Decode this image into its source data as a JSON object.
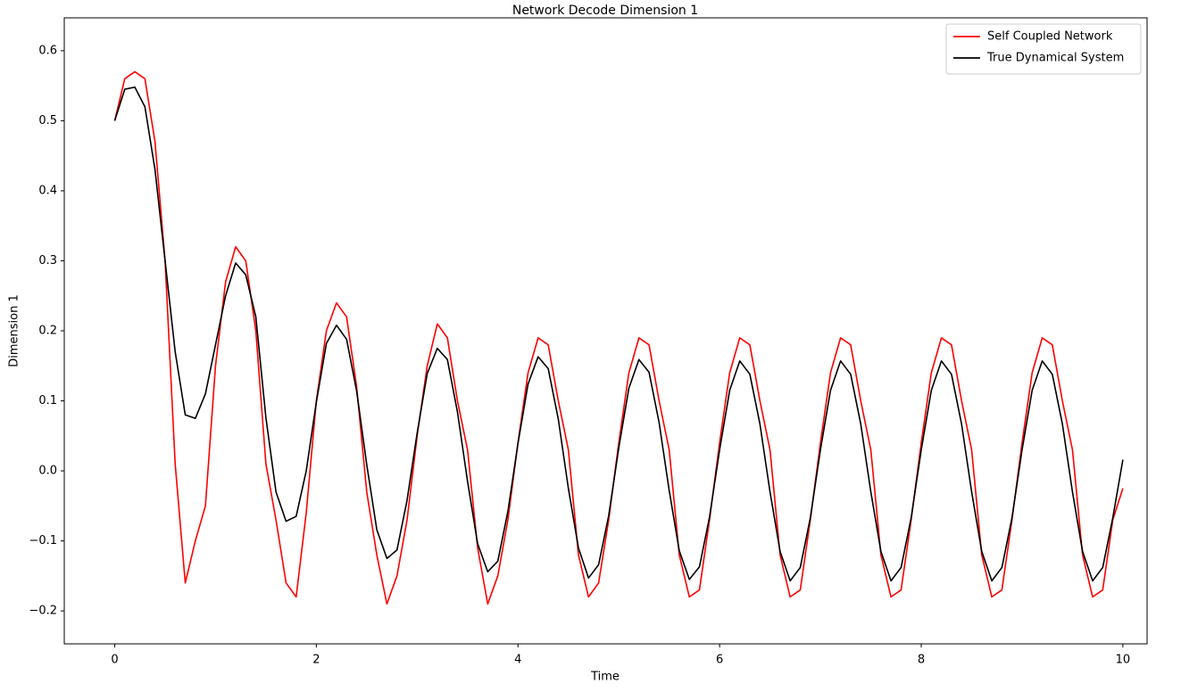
{
  "chart_data": {
    "type": "line",
    "title": "Network Decode Dimension 1",
    "x_label": "Time",
    "y_label": "Dimension 1",
    "x": [
      0,
      0.1,
      0.2,
      0.3,
      0.4,
      0.5,
      0.6,
      0.7,
      0.8,
      0.9,
      1,
      1.1,
      1.2,
      1.3,
      1.4,
      1.5,
      1.6,
      1.7,
      1.8,
      1.9,
      2,
      2.1,
      2.2,
      2.3,
      2.4,
      2.5,
      2.6,
      2.7,
      2.8,
      2.9,
      3,
      3.1,
      3.2,
      3.3,
      3.4,
      3.5,
      3.6,
      3.7,
      3.8,
      3.9,
      4,
      4.1,
      4.2,
      4.3,
      4.4,
      4.5,
      4.6,
      4.7,
      4.8,
      4.9,
      5,
      5.1,
      5.2,
      5.3,
      5.4,
      5.5,
      5.6,
      5.7,
      5.8,
      5.9,
      6,
      6.1,
      6.2,
      6.3,
      6.4,
      6.5,
      6.6,
      6.7,
      6.8,
      6.9,
      7,
      7.1,
      7.2,
      7.3,
      7.4,
      7.5,
      7.6,
      7.7,
      7.8,
      7.9,
      8,
      8.1,
      8.2,
      8.3,
      8.4,
      8.5,
      8.6,
      8.7,
      8.8,
      8.9,
      9,
      9.1,
      9.2,
      9.3,
      9.4,
      9.5,
      9.6,
      9.7,
      9.8,
      9.9,
      10
    ],
    "series": [
      {
        "name": "Self Coupled Network",
        "color": "#ff0000",
        "values": [
          0.5,
          0.56,
          0.57,
          0.56,
          0.47,
          0.3,
          0.01,
          -0.16,
          -0.1,
          -0.05,
          0.15,
          0.27,
          0.32,
          0.3,
          0.2,
          0.01,
          -0.07,
          -0.16,
          -0.18,
          -0.06,
          0.1,
          0.2,
          0.24,
          0.22,
          0.12,
          -0.03,
          -0.12,
          -0.19,
          -0.15,
          -0.07,
          0.05,
          0.15,
          0.21,
          0.19,
          0.1,
          0.03,
          -0.11,
          -0.19,
          -0.15,
          -0.07,
          0.04,
          0.14,
          0.19,
          0.18,
          0.1,
          0.03,
          -0.12,
          -0.18,
          -0.16,
          -0.07,
          0.04,
          0.14,
          0.19,
          0.18,
          0.1,
          0.03,
          -0.12,
          -0.18,
          -0.17,
          -0.07,
          0.04,
          0.14,
          0.19,
          0.18,
          0.1,
          0.03,
          -0.12,
          -0.18,
          -0.17,
          -0.07,
          0.04,
          0.14,
          0.19,
          0.18,
          0.1,
          0.03,
          -0.12,
          -0.18,
          -0.17,
          -0.07,
          0.04,
          0.14,
          0.19,
          0.18,
          0.1,
          0.03,
          -0.12,
          -0.18,
          -0.17,
          -0.07,
          0.04,
          0.14,
          0.19,
          0.18,
          0.1,
          0.03,
          -0.12,
          -0.18,
          -0.17,
          -0.07,
          -0.025
        ]
      },
      {
        "name": "True Dynamical System",
        "color": "#000000",
        "values": [
          0.5,
          0.545,
          0.548,
          0.52,
          0.43,
          0.3,
          0.17,
          0.08,
          0.075,
          0.11,
          0.18,
          0.25,
          0.297,
          0.28,
          0.22,
          0.076,
          -0.03,
          -0.072,
          -0.065,
          0,
          0.098,
          0.182,
          0.208,
          0.188,
          0.114,
          0.009,
          -0.084,
          -0.125,
          -0.113,
          -0.042,
          0.054,
          0.139,
          0.175,
          0.159,
          0.084,
          -0.015,
          -0.104,
          -0.144,
          -0.129,
          -0.058,
          0.039,
          0.124,
          0.163,
          0.146,
          0.074,
          -0.025,
          -0.11,
          -0.153,
          -0.134,
          -0.064,
          0.033,
          0.118,
          0.159,
          0.141,
          0.069,
          -0.028,
          -0.114,
          -0.155,
          -0.137,
          -0.066,
          0.03,
          0.115,
          0.157,
          0.138,
          0.067,
          -0.03,
          -0.115,
          -0.157,
          -0.138,
          -0.067,
          0.03,
          0.115,
          0.157,
          0.138,
          0.067,
          -0.03,
          -0.115,
          -0.157,
          -0.138,
          -0.067,
          0.03,
          0.115,
          0.157,
          0.138,
          0.067,
          -0.03,
          -0.115,
          -0.157,
          -0.138,
          -0.067,
          0.03,
          0.115,
          0.157,
          0.138,
          0.067,
          -0.03,
          -0.115,
          -0.157,
          -0.138,
          -0.067,
          0.016
        ]
      }
    ],
    "xlim": [
      -0.5,
      10.24
    ],
    "ylim": [
      -0.247,
      0.647
    ],
    "xticks": [
      0,
      2,
      4,
      6,
      8,
      10
    ],
    "yticks": [
      {
        "value": -0.2,
        "label": "−0.2"
      },
      {
        "value": -0.1,
        "label": "−0.1"
      },
      {
        "value": 0,
        "label": "0.0"
      },
      0.1,
      0.2,
      0.3,
      0.4,
      0.5,
      0.6
    ],
    "grid": false,
    "legend": "upper right"
  }
}
